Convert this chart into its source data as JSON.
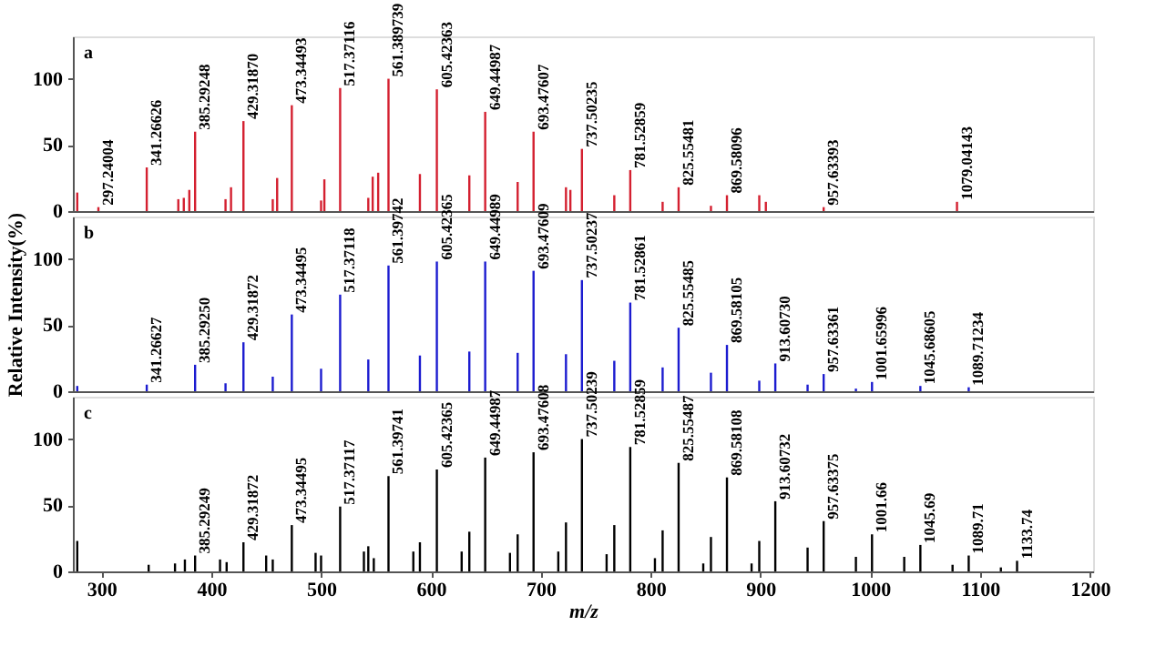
{
  "chart_data": [
    {
      "type": "bar",
      "xlim": [
        274,
        1203
      ],
      "ylim": [
        0,
        132
      ],
      "yticks": [
        0,
        50,
        100
      ],
      "tick_labels": "y",
      "x": [
        278,
        297.24004,
        341.26626,
        370,
        375,
        380,
        385.29248,
        413,
        418,
        429.3187,
        456,
        460,
        473.34493,
        500,
        503,
        517.37116,
        543,
        547,
        552,
        561.389739,
        590,
        605.42363,
        635,
        649.44987,
        679,
        693.47607,
        723,
        727,
        737.50235,
        767,
        781.52859,
        811,
        825.55481,
        855,
        869.58096,
        899,
        905,
        957.63393,
        1079.04143
      ],
      "series": [
        {
          "color": "#d42030",
          "values": [
            14,
            3,
            33,
            9,
            10,
            16,
            60,
            9,
            18,
            68,
            9,
            25,
            80,
            8,
            24,
            93,
            10,
            26,
            29,
            100,
            28,
            92,
            27,
            75,
            22,
            60,
            18,
            16,
            47,
            12,
            31,
            7,
            18,
            4,
            12,
            12,
            7,
            3,
            7
          ]
        }
      ],
      "annotations": [
        "a",
        {
          "text": "297.24004",
          "x": 297.24004,
          "y": 3
        },
        {
          "text": "341.26626",
          "x": 341.26626,
          "y": 33
        },
        {
          "text": "385.29248",
          "x": 385.29248,
          "y": 60
        },
        {
          "text": "429.31870",
          "x": 429.3187,
          "y": 68
        },
        {
          "text": "473.34493",
          "x": 473.34493,
          "y": 80
        },
        {
          "text": "517.37116",
          "x": 517.37116,
          "y": 93
        },
        {
          "text": "561.389739",
          "x": 561.389739,
          "y": 100
        },
        {
          "text": "605.42363",
          "x": 605.42363,
          "y": 92
        },
        {
          "text": "649.44987",
          "x": 649.44987,
          "y": 75
        },
        {
          "text": "693.47607",
          "x": 693.47607,
          "y": 60
        },
        {
          "text": "737.50235",
          "x": 737.50235,
          "y": 47
        },
        {
          "text": "781.52859",
          "x": 781.52859,
          "y": 31
        },
        {
          "text": "825.55481",
          "x": 825.55481,
          "y": 18
        },
        {
          "text": "869.58096",
          "x": 869.58096,
          "y": 12
        },
        {
          "text": "957.63393",
          "x": 957.63393,
          "y": 3
        },
        {
          "text": "1079.04143",
          "x": 1079.04143,
          "y": 7
        }
      ]
    },
    {
      "type": "bar",
      "ylabel": "Relative Intensity(%)",
      "xlim": [
        274,
        1203
      ],
      "ylim": [
        0,
        132
      ],
      "yticks": [
        0,
        50,
        100
      ],
      "tick_labels": "y",
      "x": [
        278,
        341.26627,
        385.2925,
        413,
        429.31872,
        456,
        473.34495,
        500,
        517.37118,
        543,
        561.39742,
        590,
        605.42365,
        635,
        649.44989,
        679,
        693.47609,
        723,
        737.50237,
        767,
        781.52861,
        811,
        825.55485,
        855,
        869.58105,
        899,
        913.6073,
        943,
        957.63361,
        987,
        1001.65996,
        1045.68605,
        1089.71234
      ],
      "series": [
        {
          "color": "#1c1cd0",
          "values": [
            4,
            5,
            20,
            6,
            37,
            11,
            58,
            17,
            73,
            24,
            95,
            27,
            98,
            30,
            98,
            29,
            91,
            28,
            84,
            23,
            67,
            18,
            48,
            14,
            35,
            8,
            21,
            5,
            13,
            2,
            7,
            4,
            3
          ]
        }
      ],
      "annotations": [
        "b",
        {
          "text": "341.26627",
          "x": 341.26627,
          "y": 5
        },
        {
          "text": "385.29250",
          "x": 385.2925,
          "y": 20
        },
        {
          "text": "429.31872",
          "x": 429.31872,
          "y": 37
        },
        {
          "text": "473.34495",
          "x": 473.34495,
          "y": 58
        },
        {
          "text": "517.37118",
          "x": 517.37118,
          "y": 73
        },
        {
          "text": "561.39742",
          "x": 561.39742,
          "y": 95
        },
        {
          "text": "605.42365",
          "x": 605.42365,
          "y": 98
        },
        {
          "text": "649.44989",
          "x": 649.44989,
          "y": 98
        },
        {
          "text": "693.47609",
          "x": 693.47609,
          "y": 91
        },
        {
          "text": "737.50237",
          "x": 737.50237,
          "y": 84
        },
        {
          "text": "781.52861",
          "x": 781.52861,
          "y": 67
        },
        {
          "text": "825.55485",
          "x": 825.55485,
          "y": 48
        },
        {
          "text": "869.58105",
          "x": 869.58105,
          "y": 35
        },
        {
          "text": "913.60730",
          "x": 913.6073,
          "y": 21
        },
        {
          "text": "957.63361",
          "x": 957.63361,
          "y": 13
        },
        {
          "text": "1001.65996",
          "x": 1001.65996,
          "y": 7
        },
        {
          "text": "1045.68605",
          "x": 1045.68605,
          "y": 4
        },
        {
          "text": "1089.71234",
          "x": 1089.71234,
          "y": 3
        }
      ]
    },
    {
      "type": "bar",
      "xlabel": "m/z",
      "xlim": [
        274,
        1203
      ],
      "xticks": [
        300,
        400,
        500,
        600,
        700,
        800,
        900,
        1000,
        1100,
        1200
      ],
      "ylim": [
        0,
        132
      ],
      "yticks": [
        0,
        50,
        100
      ],
      "x": [
        278,
        343,
        367,
        376,
        385.29249,
        408,
        414,
        429.31872,
        450,
        456,
        473.34495,
        495,
        500,
        517.37117,
        539,
        543,
        548,
        561.39741,
        584,
        590,
        605.42365,
        628,
        635,
        649.44987,
        672,
        679,
        693.47608,
        716,
        723,
        737.50239,
        760,
        767,
        781.52859,
        804,
        811,
        825.55487,
        848,
        855,
        869.58108,
        892,
        899,
        913.60732,
        943,
        957.63375,
        987,
        1001.66,
        1031,
        1045.69,
        1075,
        1089.71,
        1119,
        1133.74
      ],
      "series": [
        {
          "color": "#000000",
          "values": [
            23,
            5,
            6,
            9,
            12,
            9,
            7,
            22,
            12,
            9,
            35,
            14,
            12,
            49,
            15,
            19,
            10,
            72,
            15,
            22,
            77,
            15,
            30,
            86,
            14,
            28,
            90,
            15,
            37,
            100,
            13,
            35,
            94,
            10,
            31,
            82,
            6,
            26,
            71,
            6,
            23,
            53,
            18,
            38,
            11,
            28,
            11,
            20,
            5,
            12,
            3,
            8
          ]
        }
      ],
      "annotations": [
        "c",
        {
          "text": "385.29249",
          "x": 385.29249,
          "y": 12
        },
        {
          "text": "429.31872",
          "x": 429.31872,
          "y": 22
        },
        {
          "text": "473.34495",
          "x": 473.34495,
          "y": 35
        },
        {
          "text": "517.37117",
          "x": 517.37117,
          "y": 49
        },
        {
          "text": "561.39741",
          "x": 561.39741,
          "y": 72
        },
        {
          "text": "605.42365",
          "x": 605.42365,
          "y": 77
        },
        {
          "text": "649.44987",
          "x": 649.44987,
          "y": 86
        },
        {
          "text": "693.47608",
          "x": 693.47608,
          "y": 90
        },
        {
          "text": "737.50239",
          "x": 737.50239,
          "y": 100
        },
        {
          "text": "781.52859",
          "x": 781.52859,
          "y": 94
        },
        {
          "text": "825.55487",
          "x": 825.55487,
          "y": 82
        },
        {
          "text": "869.58108",
          "x": 869.58108,
          "y": 71
        },
        {
          "text": "913.60732",
          "x": 913.60732,
          "y": 53
        },
        {
          "text": "957.63375",
          "x": 957.63375,
          "y": 38
        },
        {
          "text": "1001.66",
          "x": 1001.66,
          "y": 28
        },
        {
          "text": "1045.69",
          "x": 1045.69,
          "y": 20
        },
        {
          "text": "1089.71",
          "x": 1089.71,
          "y": 12
        },
        {
          "text": "1133.74",
          "x": 1133.74,
          "y": 8
        }
      ]
    }
  ]
}
